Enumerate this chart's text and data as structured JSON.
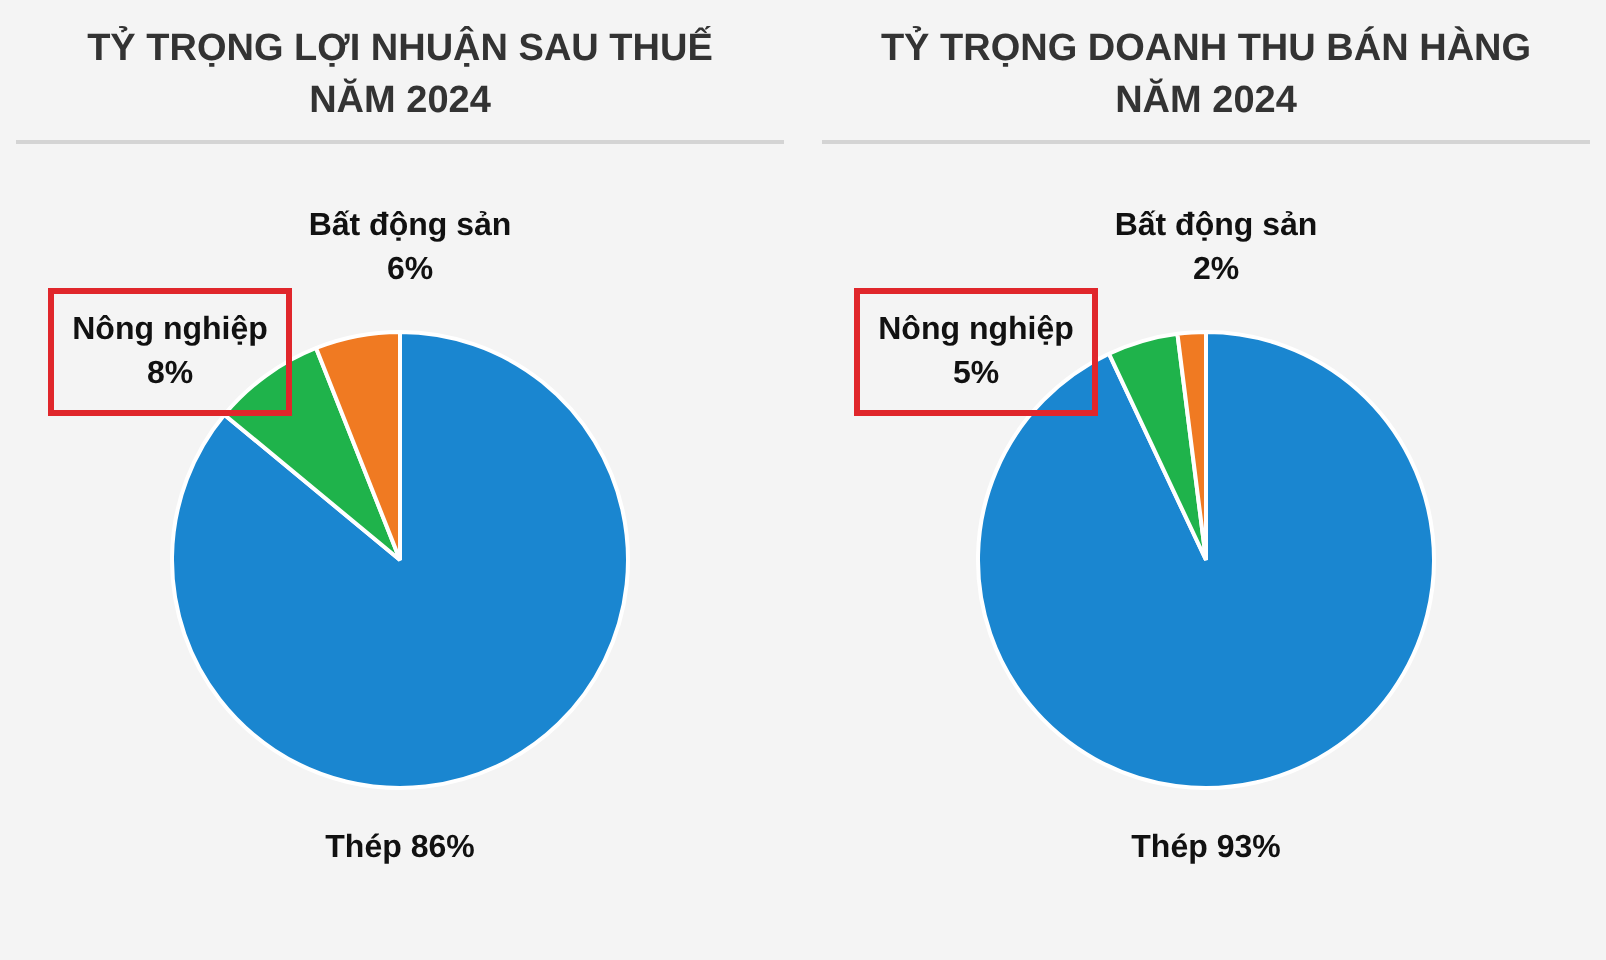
{
  "chart_data": [
    {
      "type": "pie",
      "title": "TỶ TRỌNG LỢI NHUẬN SAU THUẾ\nNĂM 2024",
      "categories": [
        "Thép",
        "Nông nghiệp",
        "Bất động sản"
      ],
      "values": [
        86,
        8,
        6
      ],
      "value_labels": [
        "86%",
        "8%",
        "6%"
      ],
      "colors": [
        "#1a86d0",
        "#1fb34b",
        "#f07a22"
      ],
      "legend": false
    },
    {
      "type": "pie",
      "title": "TỶ TRỌNG DOANH THU BÁN HÀNG\nNĂM 2024",
      "categories": [
        "Thép",
        "Nông nghiệp",
        "Bất động sản"
      ],
      "values": [
        93,
        5,
        2
      ],
      "value_labels": [
        "93%",
        "5%",
        "2%"
      ],
      "colors": [
        "#1a86d0",
        "#1fb34b",
        "#f07a22"
      ],
      "legend": false
    }
  ]
}
